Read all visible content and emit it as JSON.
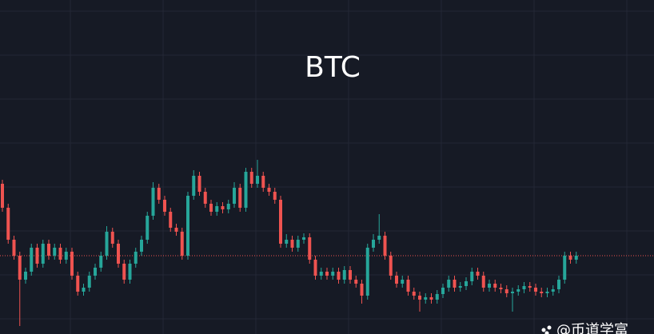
{
  "chart_data": {
    "type": "candlestick",
    "title": "BTC",
    "watermark": "@币道学富",
    "up_color": "#26a69a",
    "down_color": "#ef5350",
    "ylim": [
      0,
      418
    ],
    "open": [
      188,
      158,
      118,
      98,
      68,
      78,
      108,
      88,
      113,
      98,
      108,
      93,
      103,
      73,
      53,
      58,
      73,
      83,
      98,
      128,
      113,
      88,
      68,
      88,
      103,
      118,
      148,
      183,
      168,
      153,
      133,
      128,
      98,
      173,
      198,
      178,
      163,
      153,
      160,
      156,
      163,
      183,
      158,
      203,
      188,
      198,
      183,
      178,
      168,
      113,
      118,
      108,
      118,
      121,
      93,
      73,
      78,
      73,
      78,
      68,
      80,
      68,
      63,
      48,
      108,
      118,
      123,
      98,
      73,
      63,
      68,
      53,
      48,
      43,
      46,
      43,
      50,
      58,
      68,
      58,
      60,
      66,
      78,
      73,
      58,
      63,
      58,
      56,
      51,
      53,
      56,
      60,
      58,
      53,
      51,
      53,
      56,
      68,
      98,
      93
    ],
    "high": [
      193,
      163,
      123,
      103,
      83,
      113,
      113,
      118,
      118,
      113,
      113,
      108,
      108,
      78,
      63,
      78,
      88,
      103,
      135,
      133,
      118,
      93,
      93,
      108,
      123,
      153,
      190,
      188,
      173,
      158,
      138,
      133,
      178,
      205,
      203,
      183,
      168,
      165,
      165,
      168,
      190,
      188,
      208,
      208,
      218,
      203,
      188,
      183,
      173,
      125,
      123,
      123,
      126,
      126,
      98,
      83,
      83,
      83,
      83,
      85,
      85,
      73,
      68,
      113,
      125,
      150,
      128,
      103,
      78,
      73,
      73,
      58,
      53,
      51,
      51,
      55,
      63,
      73,
      73,
      65,
      71,
      83,
      83,
      78,
      68,
      68,
      63,
      61,
      58,
      61,
      65,
      65,
      63,
      58,
      58,
      61,
      73,
      103,
      103,
      103
    ],
    "low": [
      153,
      113,
      93,
      10,
      63,
      73,
      83,
      83,
      93,
      93,
      88,
      88,
      68,
      48,
      48,
      53,
      68,
      78,
      93,
      108,
      83,
      63,
      63,
      83,
      98,
      113,
      143,
      163,
      148,
      128,
      123,
      93,
      93,
      168,
      173,
      158,
      148,
      148,
      151,
      151,
      158,
      153,
      153,
      183,
      183,
      178,
      173,
      163,
      108,
      108,
      103,
      103,
      113,
      88,
      68,
      68,
      68,
      68,
      63,
      63,
      63,
      58,
      38,
      43,
      103,
      113,
      93,
      68,
      58,
      58,
      48,
      43,
      28,
      38,
      38,
      38,
      45,
      53,
      53,
      53,
      55,
      61,
      68,
      53,
      53,
      53,
      51,
      46,
      28,
      48,
      51,
      53,
      48,
      46,
      46,
      48,
      51,
      63,
      88,
      88
    ],
    "close": [
      158,
      118,
      98,
      68,
      78,
      108,
      88,
      113,
      98,
      108,
      93,
      103,
      73,
      53,
      58,
      73,
      83,
      98,
      128,
      113,
      88,
      68,
      88,
      103,
      118,
      148,
      183,
      168,
      153,
      133,
      128,
      98,
      173,
      198,
      178,
      163,
      153,
      160,
      156,
      163,
      183,
      158,
      203,
      188,
      198,
      183,
      178,
      168,
      113,
      118,
      108,
      118,
      121,
      93,
      73,
      78,
      73,
      78,
      68,
      80,
      68,
      63,
      48,
      108,
      118,
      123,
      98,
      73,
      63,
      68,
      53,
      48,
      43,
      46,
      43,
      50,
      58,
      68,
      58,
      60,
      66,
      78,
      73,
      58,
      63,
      58,
      56,
      51,
      53,
      56,
      60,
      58,
      53,
      51,
      53,
      56,
      68,
      98,
      93,
      98
    ]
  }
}
